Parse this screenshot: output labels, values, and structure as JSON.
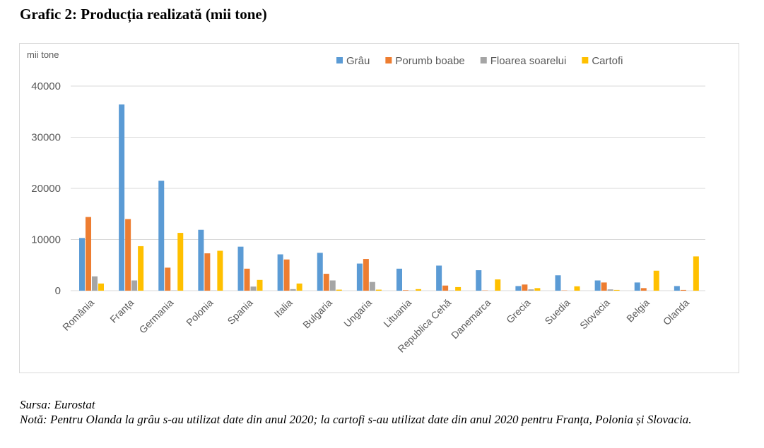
{
  "figure_title": "Grafic 2: Producția realizată (mii tone)",
  "source": "Sursa: Eurostat",
  "note": "Notă: Pentru Olanda la grâu s-au utilizat date din anul 2020; la cartofi s-au utilizat date din anul 2020 pentru Franța, Polonia și Slovacia.",
  "chart_data": {
    "type": "bar",
    "title": "",
    "ylabel": "mii tone",
    "xlabel": "",
    "ylim": [
      0,
      40000
    ],
    "yticks": [
      0,
      10000,
      20000,
      30000,
      40000
    ],
    "grid": true,
    "legend_position": "top-right",
    "categories": [
      "România",
      "Franța",
      "Germania",
      "Polonia",
      "Spania",
      "Italia",
      "Bulgaria",
      "Ungaria",
      "Lituania",
      "Republica Cehă",
      "Danemarca",
      "Grecia",
      "Suedia",
      "Slovacia",
      "Belgia",
      "Olanda"
    ],
    "series": [
      {
        "name": "Grâu",
        "color": "#5b9bd5",
        "values": [
          10300,
          36400,
          21500,
          11900,
          8600,
          7100,
          7400,
          5300,
          4300,
          4900,
          4000,
          900,
          3000,
          2000,
          1600,
          900
        ]
      },
      {
        "name": "Porumb boabe",
        "color": "#ed7d31",
        "values": [
          14400,
          14000,
          4500,
          7300,
          4300,
          6100,
          3300,
          6200,
          100,
          1000,
          50,
          1200,
          50,
          1600,
          500,
          150
        ]
      },
      {
        "name": "Floarea soarelui",
        "color": "#a5a5a5",
        "values": [
          2800,
          2000,
          50,
          30,
          800,
          300,
          2000,
          1700,
          30,
          50,
          0,
          250,
          0,
          250,
          0,
          0
        ]
      },
      {
        "name": "Cartofi",
        "color": "#ffc000",
        "values": [
          1400,
          8700,
          11300,
          7800,
          2100,
          1400,
          200,
          200,
          300,
          700,
          2200,
          500,
          850,
          150,
          3900,
          6700
        ]
      }
    ]
  }
}
